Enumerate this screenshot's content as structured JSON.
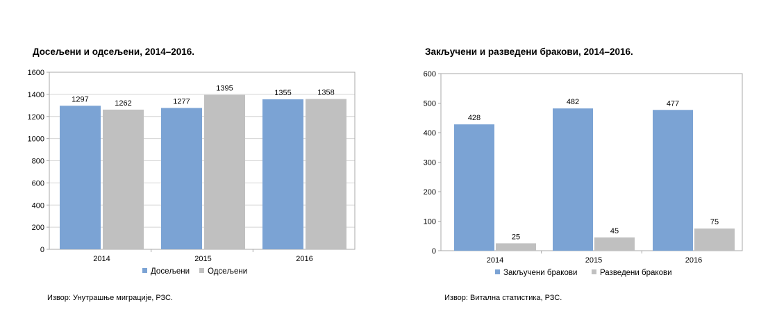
{
  "chart_data": [
    {
      "type": "bar",
      "title": "Досељени и одсељени, 2014–2016.",
      "categories": [
        "2014",
        "2015",
        "2016"
      ],
      "series": [
        {
          "name": "Досељени",
          "values": [
            1297,
            1277,
            1355
          ],
          "color": "#7ba3d4"
        },
        {
          "name": "Одсељени",
          "values": [
            1262,
            1395,
            1358
          ],
          "color": "#c0c0c0"
        }
      ],
      "ylim": [
        0,
        1600
      ],
      "yticks": [
        0,
        200,
        400,
        600,
        800,
        1000,
        1200,
        1400,
        1600
      ],
      "grid": true,
      "legend": "bottom",
      "source": "Извор: Унутрашње миграције, РЗС."
    },
    {
      "type": "bar",
      "title": "Закључени и разведени бракови, 2014–2016.",
      "categories": [
        "2014",
        "2015",
        "2016"
      ],
      "series": [
        {
          "name": "Закључени бракови",
          "values": [
            428,
            482,
            477
          ],
          "color": "#7ba3d4"
        },
        {
          "name": "Разведени бракови",
          "values": [
            25,
            45,
            75
          ],
          "color": "#c0c0c0"
        }
      ],
      "ylim": [
        0,
        600
      ],
      "yticks": [
        0,
        100,
        200,
        300,
        400,
        500,
        600
      ],
      "grid": false,
      "legend": "bottom",
      "source": "Извор: Витална статистика, РЗС."
    }
  ]
}
